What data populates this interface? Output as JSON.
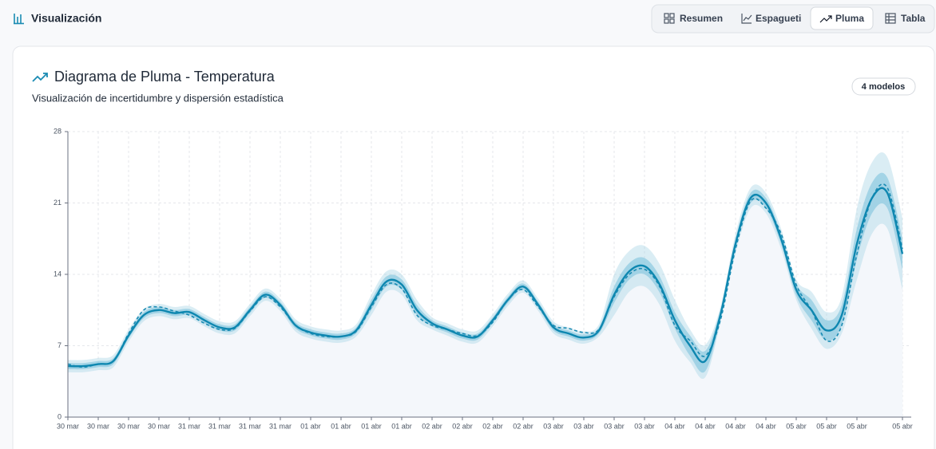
{
  "header": {
    "title": "Visualización",
    "tabs": [
      "Resumen",
      "Espagueti",
      "Pluma",
      "Tabla"
    ],
    "active_tab": 2
  },
  "card": {
    "title": "Diagrama de Pluma - Temperatura",
    "subtitle": "Visualización de incertidumbre y dispersión estadística",
    "badge": "4 modelos"
  },
  "chart_data": {
    "type": "fan",
    "categories": [
      "30 mar",
      null,
      "30 mar",
      null,
      "30 mar",
      null,
      "30 mar",
      null,
      "31 mar",
      null,
      "31 mar",
      null,
      "31 mar",
      null,
      "31 mar",
      null,
      "01 abr",
      null,
      "01 abr",
      null,
      "01 abr",
      null,
      "01 abr",
      null,
      "02 abr",
      null,
      "02 abr",
      null,
      "02 abr",
      null,
      "02 abr",
      null,
      "03 abr",
      null,
      "03 abr",
      null,
      "03 abr",
      null,
      "03 abr",
      null,
      "04 abr",
      null,
      "04 abr",
      null,
      "04 abr",
      null,
      "04 abr",
      null,
      "05 abr",
      null,
      "05 abr",
      null,
      "05 abr",
      null,
      null,
      "05 abr"
    ],
    "ylim": [
      0,
      28
    ],
    "yticks": [
      0,
      7,
      14,
      21,
      28
    ],
    "grid": true,
    "bands": [
      {
        "color": "#add8e6",
        "opacity": 0.45,
        "low": [
          4.4,
          4.4,
          4.6,
          4.9,
          7.4,
          9.4,
          9.9,
          9.6,
          9.7,
          8.9,
          8.2,
          8.2,
          9.9,
          11.4,
          10.4,
          8.4,
          7.7,
          7.4,
          7.3,
          7.9,
          10.0,
          12.3,
          12.0,
          9.5,
          8.6,
          8.0,
          7.4,
          7.3,
          8.9,
          10.9,
          12.2,
          10.4,
          8.2,
          7.6,
          7.2,
          7.9,
          10.0,
          12.3,
          12.8,
          11.0,
          7.5,
          5.4,
          3.9,
          9.2,
          16.0,
          20.5,
          20.0,
          16.5,
          11.5,
          8.7,
          6.7,
          8.2,
          13.5,
          18.0,
          18.5,
          12.5
        ],
        "high": [
          5.6,
          5.6,
          5.8,
          6.1,
          8.6,
          10.6,
          11.1,
          10.8,
          10.9,
          10.1,
          9.4,
          9.4,
          11.1,
          12.6,
          11.6,
          9.6,
          8.9,
          8.6,
          8.5,
          9.1,
          12.0,
          14.3,
          14.0,
          11.5,
          9.8,
          9.2,
          8.6,
          8.5,
          10.1,
          12.1,
          13.4,
          11.6,
          9.4,
          8.8,
          8.4,
          9.1,
          14.0,
          16.3,
          16.8,
          15.0,
          11.5,
          8.6,
          7.1,
          10.8,
          18.0,
          22.5,
          22.0,
          18.5,
          13.5,
          12.3,
          10.3,
          11.8,
          20.5,
          25.0,
          25.5,
          19.5
        ]
      },
      {
        "color": "#7fc3dc",
        "opacity": 0.6,
        "low": [
          4.7,
          4.7,
          4.9,
          5.2,
          7.7,
          9.7,
          10.2,
          9.9,
          10.0,
          9.2,
          8.5,
          8.5,
          10.2,
          11.7,
          10.7,
          8.7,
          8.0,
          7.7,
          7.6,
          8.2,
          10.5,
          12.8,
          12.5,
          10.0,
          8.9,
          8.3,
          7.7,
          7.6,
          9.2,
          11.2,
          12.5,
          10.7,
          8.5,
          7.9,
          7.5,
          8.2,
          11.2,
          13.5,
          14.0,
          12.2,
          8.7,
          6.0,
          4.5,
          9.5,
          16.5,
          21.0,
          20.5,
          17.0,
          11.9,
          9.5,
          7.5,
          9.0,
          15.5,
          20.0,
          20.5,
          14.5
        ],
        "high": [
          5.3,
          5.3,
          5.5,
          5.8,
          8.3,
          10.3,
          10.8,
          10.5,
          10.6,
          9.8,
          9.1,
          9.1,
          10.8,
          12.3,
          11.3,
          9.3,
          8.6,
          8.3,
          8.2,
          8.8,
          11.5,
          13.8,
          13.5,
          11.0,
          9.5,
          8.9,
          8.3,
          8.2,
          9.8,
          11.8,
          13.1,
          11.3,
          9.1,
          8.5,
          8.1,
          8.8,
          12.8,
          15.1,
          15.6,
          13.8,
          10.3,
          8.0,
          6.5,
          10.5,
          17.5,
          22.0,
          21.5,
          18.0,
          13.1,
          11.5,
          9.5,
          11.0,
          18.5,
          23.0,
          23.5,
          17.5
        ]
      }
    ],
    "series": [
      {
        "color": "#1a8bb3",
        "style": "dashed",
        "values": [
          5.2,
          4.9,
          5.2,
          5.5,
          8.2,
          10.5,
          10.8,
          10.4,
          10.0,
          9.2,
          8.6,
          8.7,
          10.4,
          11.8,
          10.8,
          9.0,
          8.2,
          7.9,
          7.9,
          8.4,
          10.8,
          13.0,
          12.6,
          10.0,
          9.0,
          8.6,
          8.2,
          8.0,
          9.3,
          11.5,
          12.5,
          10.8,
          9.0,
          8.7,
          8.3,
          8.6,
          11.8,
          14.0,
          14.5,
          12.8,
          9.0,
          7.5,
          6.0,
          9.5,
          16.5,
          21.2,
          20.5,
          18.0,
          13.0,
          10.5,
          7.5,
          9.0,
          16.0,
          21.5,
          22.5,
          16.5
        ]
      },
      {
        "color": "#0e87b0",
        "style": "solid",
        "fill": "#f4f7fb",
        "values": [
          5.0,
          5.0,
          5.2,
          5.5,
          8.0,
          10.0,
          10.5,
          10.2,
          10.3,
          9.5,
          8.8,
          8.8,
          10.5,
          12.0,
          11.0,
          9.0,
          8.3,
          8.0,
          7.9,
          8.5,
          11.0,
          13.3,
          13.0,
          10.5,
          9.2,
          8.6,
          8.0,
          7.9,
          9.5,
          11.5,
          12.8,
          11.0,
          8.8,
          8.2,
          7.8,
          8.5,
          12.0,
          14.3,
          14.8,
          13.0,
          9.5,
          7.0,
          5.5,
          10.0,
          17.0,
          21.5,
          21.0,
          17.5,
          12.5,
          10.5,
          8.5,
          10.0,
          17.0,
          21.5,
          22.0,
          16.0
        ]
      }
    ]
  }
}
